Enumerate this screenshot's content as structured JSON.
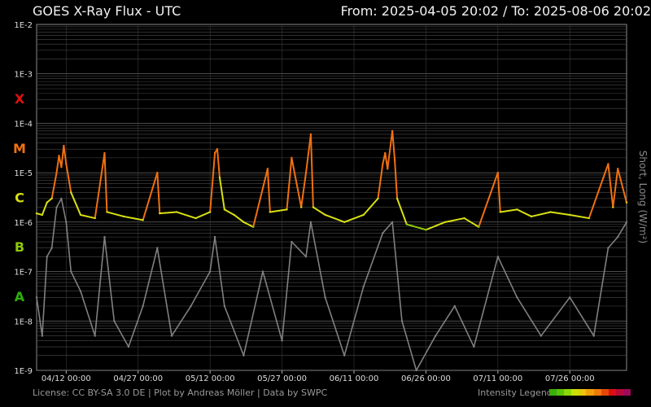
{
  "header": {
    "title": "GOES X-Ray Flux - UTC",
    "range": "From: 2025-04-05 20:02  /  To: 2025-08-06 20:02"
  },
  "footer": {
    "license": "License: CC BY-SA 3.0 DE | Plot by Andreas Möller | Data by SWPC",
    "legend_label": "Intensity Legend",
    "legend_colors": [
      "#3cb00a",
      "#58c40a",
      "#8ed80a",
      "#c8e00a",
      "#e8c80a",
      "#f0a00a",
      "#f07a0a",
      "#e8460a",
      "#d81010",
      "#b80a3a",
      "#a00a5a"
    ]
  },
  "chart_data": {
    "type": "line",
    "title": "GOES X-Ray Flux - UTC",
    "xlabel": "",
    "ylabel": "Short, Long (W/m²)",
    "yscale": "log",
    "ylim": [
      1e-09,
      0.01
    ],
    "xlim": [
      "2025-04-05 20:02",
      "2025-08-06 20:02"
    ],
    "x_ticks": [
      "04/12 00:00",
      "04/27 00:00",
      "05/12 00:00",
      "05/27 00:00",
      "06/11 00:00",
      "06/26 00:00",
      "07/11 00:00",
      "07/26 00:00"
    ],
    "y_ticks": [
      "1E-2",
      "1E-3",
      "1E-4",
      "1E-5",
      "1E-6",
      "1E-7",
      "1E-8",
      "1E-9"
    ],
    "flare_classes": [
      {
        "label": "X",
        "value": 0.0001,
        "color": "#e01010"
      },
      {
        "label": "M",
        "value": 1e-05,
        "color": "#f07010"
      },
      {
        "label": "C",
        "value": 1e-06,
        "color": "#d8e010"
      },
      {
        "label": "B",
        "value": 1e-07,
        "color": "#8cc80a"
      },
      {
        "label": "A",
        "value": 1e-08,
        "color": "#2eb00a"
      }
    ],
    "grid": true,
    "series": [
      {
        "name": "Long",
        "color": "class-colored",
        "points": [
          [
            "2025-04-05 20:02",
            1.5e-06
          ],
          [
            "2025-04-07 00:00",
            1.4e-06
          ],
          [
            "2025-04-08 00:00",
            2.5e-06
          ],
          [
            "2025-04-09 00:00",
            3e-06
          ],
          [
            "2025-04-10 00:00",
            1e-05
          ],
          [
            "2025-04-10 12:00",
            2.2e-05
          ],
          [
            "2025-04-11 00:00",
            1.3e-05
          ],
          [
            "2025-04-11 12:00",
            3.5e-05
          ],
          [
            "2025-04-12 00:00",
            1.5e-05
          ],
          [
            "2025-04-13 00:00",
            4e-06
          ],
          [
            "2025-04-15 00:00",
            1.4e-06
          ],
          [
            "2025-04-18 00:00",
            1.2e-06
          ],
          [
            "2025-04-20 00:00",
            2.5e-05
          ],
          [
            "2025-04-20 12:00",
            1.6e-06
          ],
          [
            "2025-04-24 00:00",
            1.3e-06
          ],
          [
            "2025-04-28 00:00",
            1.1e-06
          ],
          [
            "2025-05-01 00:00",
            1e-05
          ],
          [
            "2025-05-01 12:00",
            1.5e-06
          ],
          [
            "2025-05-05 00:00",
            1.6e-06
          ],
          [
            "2025-05-09 00:00",
            1.2e-06
          ],
          [
            "2025-05-12 00:00",
            1.6e-06
          ],
          [
            "2025-05-13 00:00",
            2.5e-05
          ],
          [
            "2025-05-13 12:00",
            3e-05
          ],
          [
            "2025-05-14 00:00",
            8e-06
          ],
          [
            "2025-05-15 00:00",
            1.8e-06
          ],
          [
            "2025-05-17 00:00",
            1.4e-06
          ],
          [
            "2025-05-19 00:00",
            1e-06
          ],
          [
            "2025-05-21 00:00",
            8e-07
          ],
          [
            "2025-05-24 00:00",
            1.2e-05
          ],
          [
            "2025-05-24 12:00",
            1.6e-06
          ],
          [
            "2025-05-28 00:00",
            1.8e-06
          ],
          [
            "2025-05-29 00:00",
            2e-05
          ],
          [
            "2025-05-31 00:00",
            2e-06
          ],
          [
            "2025-06-01 00:00",
            1e-05
          ],
          [
            "2025-06-02 00:00",
            6e-05
          ],
          [
            "2025-06-02 12:00",
            2e-06
          ],
          [
            "2025-06-05 00:00",
            1.4e-06
          ],
          [
            "2025-06-09 00:00",
            1e-06
          ],
          [
            "2025-06-13 00:00",
            1.4e-06
          ],
          [
            "2025-06-16 00:00",
            3e-06
          ],
          [
            "2025-06-17 00:00",
            1.5e-05
          ],
          [
            "2025-06-17 12:00",
            2.5e-05
          ],
          [
            "2025-06-18 00:00",
            1.2e-05
          ],
          [
            "2025-06-19 00:00",
            7e-05
          ],
          [
            "2025-06-19 12:00",
            1.8e-05
          ],
          [
            "2025-06-20 00:00",
            3e-06
          ],
          [
            "2025-06-22 00:00",
            9e-07
          ],
          [
            "2025-06-26 00:00",
            7e-07
          ],
          [
            "2025-06-30 00:00",
            1e-06
          ],
          [
            "2025-07-04 00:00",
            1.2e-06
          ],
          [
            "2025-07-07 00:00",
            8e-07
          ],
          [
            "2025-07-11 00:00",
            1e-05
          ],
          [
            "2025-07-11 12:00",
            1.6e-06
          ],
          [
            "2025-07-15 00:00",
            1.8e-06
          ],
          [
            "2025-07-18 00:00",
            1.3e-06
          ],
          [
            "2025-07-22 00:00",
            1.6e-06
          ],
          [
            "2025-07-26 00:00",
            1.4e-06
          ],
          [
            "2025-07-30 00:00",
            1.2e-06
          ],
          [
            "2025-08-03 00:00",
            1.5e-05
          ],
          [
            "2025-08-04 00:00",
            2e-06
          ],
          [
            "2025-08-05 00:00",
            1.2e-05
          ],
          [
            "2025-08-06 20:02",
            2.5e-06
          ]
        ]
      },
      {
        "name": "Short",
        "color": "#808080",
        "points": [
          [
            "2025-04-05 20:02",
            3e-08
          ],
          [
            "2025-04-07 00:00",
            5e-09
          ],
          [
            "2025-04-08 00:00",
            2e-07
          ],
          [
            "2025-04-09 00:00",
            3e-07
          ],
          [
            "2025-04-10 00:00",
            2e-06
          ],
          [
            "2025-04-11 00:00",
            3e-06
          ],
          [
            "2025-04-12 00:00",
            1e-06
          ],
          [
            "2025-04-13 00:00",
            1e-07
          ],
          [
            "2025-04-15 00:00",
            4e-08
          ],
          [
            "2025-04-18 00:00",
            5e-09
          ],
          [
            "2025-04-20 00:00",
            5e-07
          ],
          [
            "2025-04-22 00:00",
            1e-08
          ],
          [
            "2025-04-25 00:00",
            3e-09
          ],
          [
            "2025-04-28 00:00",
            2e-08
          ],
          [
            "2025-05-01 00:00",
            3e-07
          ],
          [
            "2025-05-04 00:00",
            5e-09
          ],
          [
            "2025-05-08 00:00",
            2e-08
          ],
          [
            "2025-05-12 00:00",
            1e-07
          ],
          [
            "2025-05-13 00:00",
            5e-07
          ],
          [
            "2025-05-15 00:00",
            2e-08
          ],
          [
            "2025-05-19 00:00",
            2e-09
          ],
          [
            "2025-05-23 00:00",
            1e-07
          ],
          [
            "2025-05-27 00:00",
            4e-09
          ],
          [
            "2025-05-29 00:00",
            4e-07
          ],
          [
            "2025-06-01 00:00",
            2e-07
          ],
          [
            "2025-06-02 00:00",
            1e-06
          ],
          [
            "2025-06-05 00:00",
            3e-08
          ],
          [
            "2025-06-09 00:00",
            2e-09
          ],
          [
            "2025-06-13 00:00",
            5e-08
          ],
          [
            "2025-06-17 00:00",
            6e-07
          ],
          [
            "2025-06-19 00:00",
            1e-06
          ],
          [
            "2025-06-21 00:00",
            1e-08
          ],
          [
            "2025-06-24 00:00",
            1e-09
          ],
          [
            "2025-06-28 00:00",
            5e-09
          ],
          [
            "2025-07-02 00:00",
            2e-08
          ],
          [
            "2025-07-06 00:00",
            3e-09
          ],
          [
            "2025-07-11 00:00",
            2e-07
          ],
          [
            "2025-07-15 00:00",
            3e-08
          ],
          [
            "2025-07-20 00:00",
            5e-09
          ],
          [
            "2025-07-26 00:00",
            3e-08
          ],
          [
            "2025-07-31 00:00",
            5e-09
          ],
          [
            "2025-08-03 00:00",
            3e-07
          ],
          [
            "2025-08-05 00:00",
            5e-07
          ],
          [
            "2025-08-06 20:02",
            1e-06
          ]
        ]
      }
    ]
  }
}
